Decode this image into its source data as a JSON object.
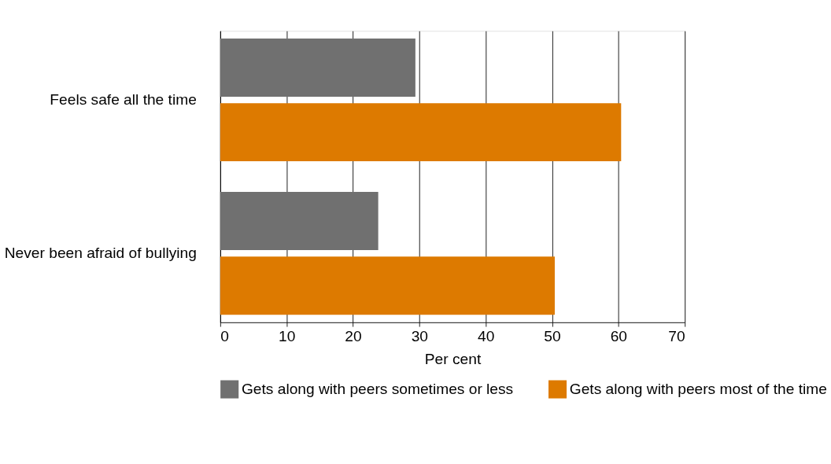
{
  "chart_data": {
    "type": "bar",
    "orientation": "horizontal",
    "xlabel": "Per cent",
    "categories": [
      "Feels safe all the time",
      "Never been afraid of bullying"
    ],
    "series": [
      {
        "name": "Gets along with peers sometimes or less",
        "color": "#707070",
        "values": [
          29.4,
          23.8
        ]
      },
      {
        "name": "Gets along with peers most of the time",
        "color": "#dd7a00",
        "values": [
          60.4,
          50.4
        ]
      }
    ],
    "xlim": [
      0,
      70
    ],
    "xticks": [
      0,
      10,
      20,
      30,
      40,
      50,
      60,
      70
    ],
    "grid": "x",
    "legend": "bottom"
  }
}
